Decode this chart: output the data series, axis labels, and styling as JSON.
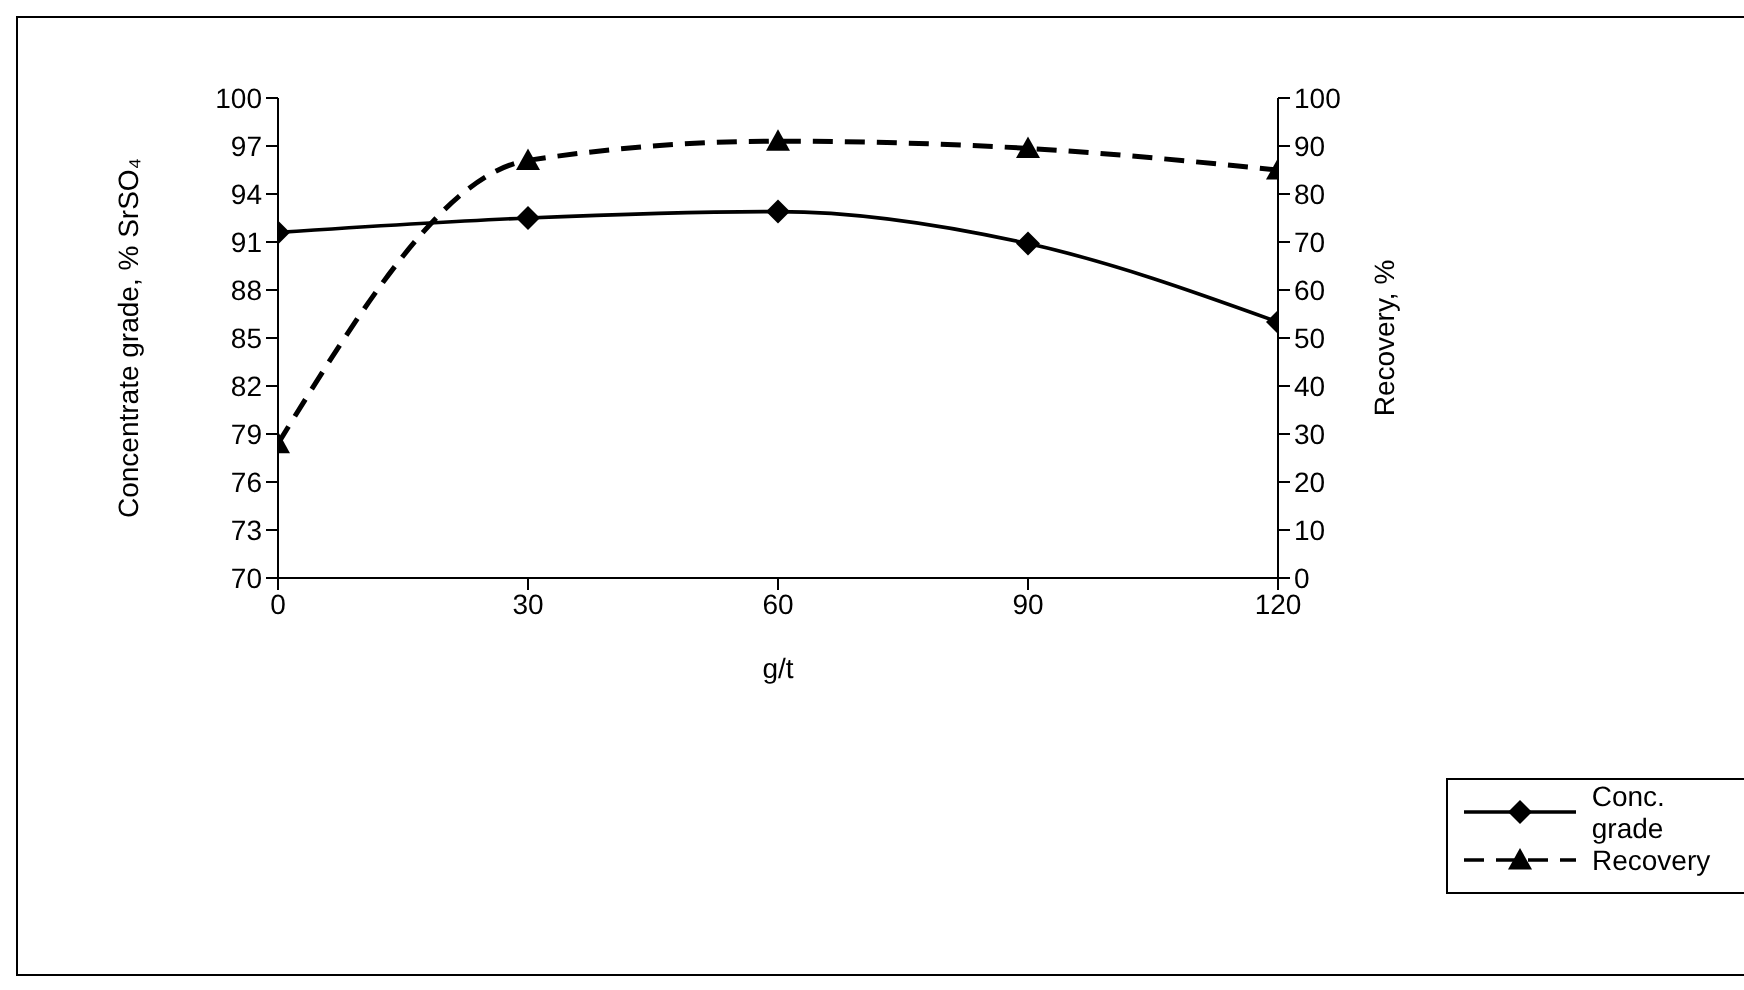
{
  "chart_data": {
    "type": "line",
    "xlabel": "g/t",
    "ylabel": "Concentrate grade, % SrSO₄",
    "y2label": "Recovery, %",
    "x": [
      0,
      30,
      60,
      90,
      120
    ],
    "series": [
      {
        "name": "Conc. grade",
        "color": "#000000",
        "values": [
          91.6,
          92.5,
          92.9,
          90.9,
          86.0
        ],
        "marker": "diamond",
        "line_style": "solid"
      },
      {
        "name": "Recovery",
        "color": "#000000",
        "values": [
          28,
          87,
          91,
          89.5,
          85
        ],
        "axis": "y2",
        "marker": "triangle",
        "line_style": "dashed"
      }
    ],
    "xlim": [
      0,
      120
    ],
    "xticks": [
      0,
      30,
      60,
      90,
      120
    ],
    "ylim": [
      70,
      100
    ],
    "yticks": [
      70,
      73,
      76,
      79,
      82,
      85,
      88,
      91,
      94,
      97,
      100
    ],
    "y2lim": [
      0,
      100
    ],
    "y2ticks": [
      0,
      10,
      20,
      30,
      40,
      50,
      60,
      70,
      80,
      90,
      100
    ],
    "grid": false,
    "legend": "bottom right"
  }
}
